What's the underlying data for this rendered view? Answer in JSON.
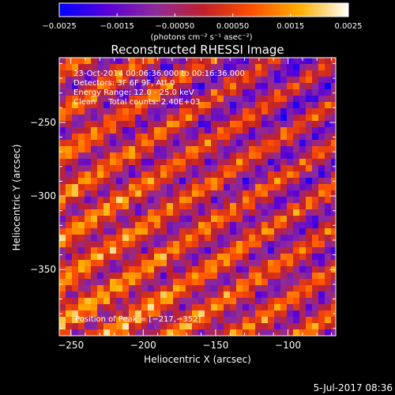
{
  "chart_data": {
    "type": "heatmap",
    "title": "Reconstructed RHESSI Image",
    "xlabel": "Heliocentric X (arcsec)",
    "ylabel": "Heliocentric Y (arcsec)",
    "xlim": [
      -258,
      -67
    ],
    "ylim": [
      -395,
      -206
    ],
    "x_ticks": [
      -250,
      -200,
      -150,
      -100
    ],
    "y_ticks": [
      -250,
      -300,
      -350
    ],
    "x_tick_labels": [
      "−250",
      "−200",
      "−150",
      "−100"
    ],
    "y_tick_labels": [
      "−250",
      "−300",
      "−350"
    ],
    "colorbar": {
      "min": -0.0025,
      "max": 0.0025,
      "ticks": [
        -0.0025,
        -0.0015,
        -0.0005,
        0.0005,
        0.0015,
        0.0025
      ],
      "tick_labels": [
        "−0.0025",
        "−0.0015",
        "−0.00050",
        "0.00050",
        "0.0015",
        "0.0025"
      ],
      "unit_label": "(photons cm⁻² s⁻¹ asec⁻²)",
      "colormap": [
        "#0000ff",
        "#5a00d8",
        "#8f2a9a",
        "#c0202a",
        "#ff5000",
        "#ffb000",
        "#ffffff"
      ]
    },
    "info_lines": [
      "23-Oct-2014 00:06:36.000 to 00:16:36.000",
      "Detectors: 3F 6F 9F, Att 0",
      "Energy Range: 12.0 - 25.0 keV",
      "Clean     Total counts: 2.40E+03"
    ],
    "peak_label": "Position of Peak = [−217,−352]",
    "peak": [
      -217,
      -352
    ]
  },
  "footer": {
    "date": "5-Jul-2017 08:36"
  }
}
